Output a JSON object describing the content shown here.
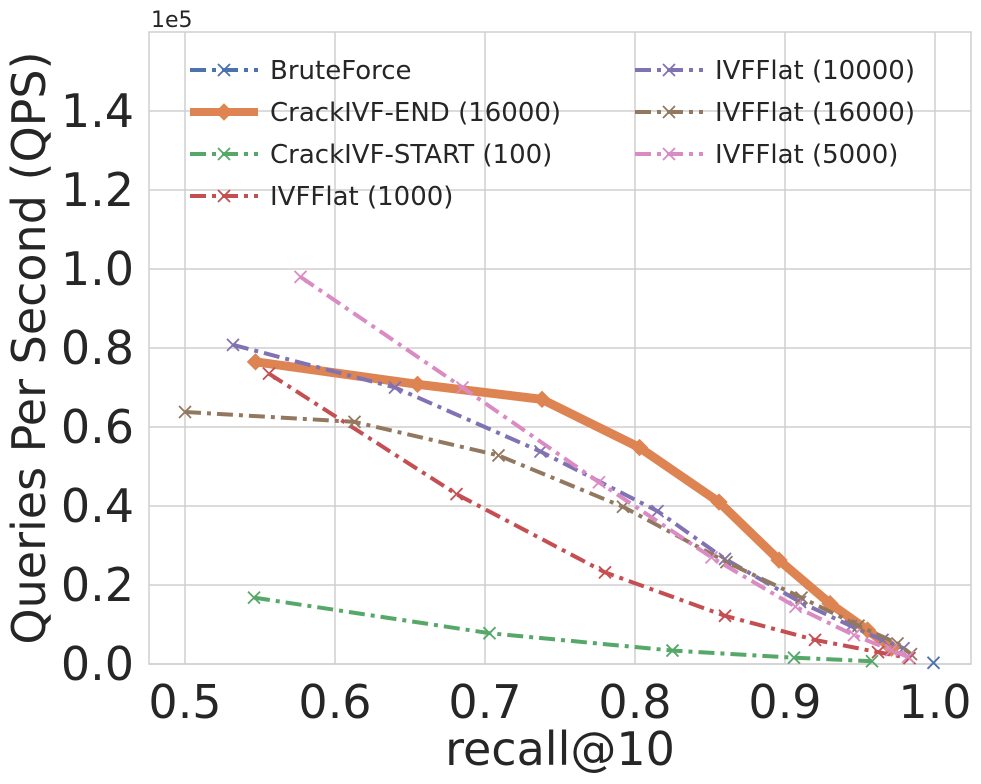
{
  "chart_data": {
    "type": "line",
    "title": "",
    "xlabel": "recall@10",
    "ylabel": "Queries Per Second (QPS)",
    "y_offset_label": "1e5",
    "xlim": [
      0.476,
      1.024
    ],
    "ylim": [
      0,
      1.6
    ],
    "x_ticks": [
      "0.5",
      "0.6",
      "0.7",
      "0.8",
      "0.9",
      "1.0"
    ],
    "y_ticks": [
      "0.0",
      "0.2",
      "0.4",
      "0.6",
      "0.8",
      "1.0",
      "1.2",
      "1.4"
    ],
    "grid": true,
    "legend_position": "upper, two columns",
    "series": [
      {
        "name": "BruteForce",
        "color": "#4c72b0",
        "marker": "x",
        "dash": "dashdot",
        "width": 4,
        "x": [
          0.999
        ],
        "y": [
          0.003
        ]
      },
      {
        "name": "CrackIVF-END (16000)",
        "color": "#dd8452",
        "marker": "diamond",
        "dash": "solid",
        "width": 9,
        "x": [
          0.547,
          0.655,
          0.738,
          0.803,
          0.856,
          0.896,
          0.93,
          0.955,
          0.971
        ],
        "y": [
          0.765,
          0.708,
          0.67,
          0.548,
          0.41,
          0.263,
          0.153,
          0.086,
          0.04
        ]
      },
      {
        "name": "CrackIVF-START (100)",
        "color": "#55a868",
        "marker": "x",
        "dash": "dashdot",
        "width": 4,
        "x": [
          0.546,
          0.703,
          0.825,
          0.906,
          0.958
        ],
        "y": [
          0.168,
          0.078,
          0.034,
          0.016,
          0.007
        ]
      },
      {
        "name": "IVFFlat (1000)",
        "color": "#c44e52",
        "marker": "x",
        "dash": "dashdot",
        "width": 4,
        "x": [
          0.556,
          0.681,
          0.78,
          0.86,
          0.92,
          0.962,
          0.983
        ],
        "y": [
          0.735,
          0.43,
          0.232,
          0.122,
          0.061,
          0.03,
          0.015
        ]
      },
      {
        "name": "IVFFlat (10000)",
        "color": "#8172b3",
        "marker": "x",
        "dash": "dashdot",
        "width": 4,
        "x": [
          0.532,
          0.64,
          0.737,
          0.815,
          0.86,
          0.91,
          0.944,
          0.965,
          0.979
        ],
        "y": [
          0.808,
          0.7,
          0.538,
          0.387,
          0.266,
          0.157,
          0.096,
          0.061,
          0.04
        ]
      },
      {
        "name": "IVFFlat (16000)",
        "color": "#937860",
        "marker": "x",
        "dash": "dashdot",
        "width": 4,
        "x": [
          0.5,
          0.613,
          0.709,
          0.792,
          0.861,
          0.911,
          0.949,
          0.975,
          0.984
        ],
        "y": [
          0.638,
          0.613,
          0.528,
          0.398,
          0.258,
          0.168,
          0.097,
          0.052,
          0.025
        ]
      },
      {
        "name": "IVFFlat (5000)",
        "color": "#da8bc3",
        "marker": "x",
        "dash": "dashdot",
        "width": 4,
        "x": [
          0.577,
          0.685,
          0.776,
          0.851,
          0.907,
          0.946,
          0.971,
          0.982
        ],
        "y": [
          0.98,
          0.7,
          0.46,
          0.27,
          0.145,
          0.073,
          0.035,
          0.018
        ]
      }
    ]
  }
}
